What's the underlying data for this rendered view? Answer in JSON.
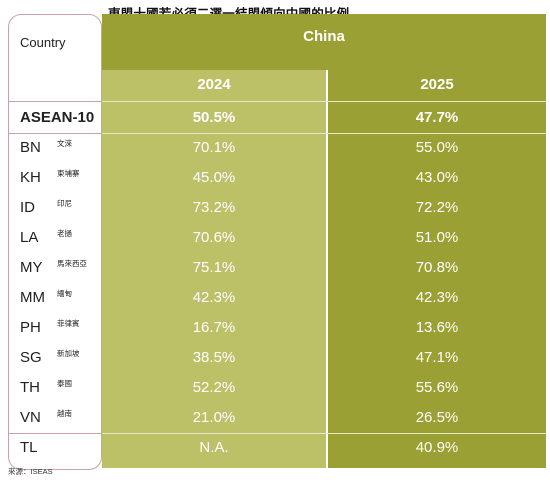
{
  "title": "東盟十國若必須二選一結盟傾向中國的比例",
  "source": "來源：ISEAS",
  "header": {
    "country_label": "Country",
    "group_label": "China",
    "years": [
      "2024",
      "2025"
    ]
  },
  "colors": {
    "panel_dark": "#9aa033",
    "panel_light": "#bcc067",
    "text_on_panel": "#ffffff",
    "country_border": "#c7a4ad"
  },
  "chart_data": {
    "type": "table",
    "title": "東盟十國若必須二選一結盟傾向中國的比例",
    "columns": [
      "Country",
      "2024",
      "2025"
    ],
    "group_header": "China",
    "rows": [
      {
        "code": "ASEAN-10",
        "name": "",
        "y2024": "50.5%",
        "y2025": "47.7%",
        "bold": true
      },
      {
        "code": "BN",
        "name": "文淶",
        "y2024": "70.1%",
        "y2025": "55.0%"
      },
      {
        "code": "KH",
        "name": "柬埔寨",
        "y2024": "45.0%",
        "y2025": "43.0%"
      },
      {
        "code": "ID",
        "name": "印尼",
        "y2024": "73.2%",
        "y2025": "72.2%"
      },
      {
        "code": "LA",
        "name": "老撾",
        "y2024": "70.6%",
        "y2025": "51.0%"
      },
      {
        "code": "MY",
        "name": "馬來西亞",
        "y2024": "75.1%",
        "y2025": "70.8%"
      },
      {
        "code": "MM",
        "name": "緬甸",
        "y2024": "42.3%",
        "y2025": "42.3%"
      },
      {
        "code": "PH",
        "name": "菲律賓",
        "y2024": "16.7%",
        "y2025": "13.6%"
      },
      {
        "code": "SG",
        "name": "新加坡",
        "y2024": "38.5%",
        "y2025": "47.1%"
      },
      {
        "code": "TH",
        "name": "泰國",
        "y2024": "52.2%",
        "y2025": "55.6%"
      },
      {
        "code": "VN",
        "name": "越南",
        "y2024": "21.0%",
        "y2025": "26.5%"
      },
      {
        "code": "TL",
        "name": "",
        "y2024": "N.A.",
        "y2025": "40.9%"
      }
    ]
  }
}
